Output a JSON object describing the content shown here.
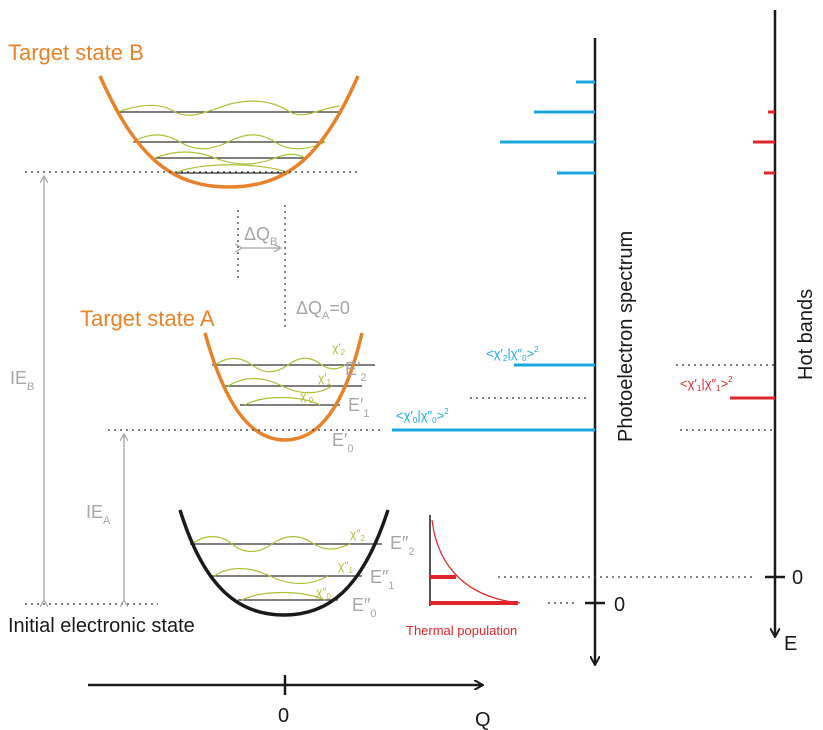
{
  "colors": {
    "target": "#e8822a",
    "initial": "#1a1a1a",
    "wavefunction": "#a8c33a",
    "spectrum": "#1aa7e0",
    "hot": "#e0262b",
    "annotation": "#a6a6a6"
  },
  "labels": {
    "target_b": "Target state B",
    "target_a": "Target state A",
    "initial": "Initial electronic state",
    "thermal": "Thermal population",
    "photoelectron": "Photoelectron spectrum",
    "hot_bands": "Hot bands",
    "ie_a": "IE",
    "ie_a_sub": "A",
    "ie_b": "IE",
    "ie_b_sub": "B",
    "dq_b": "ΔQ",
    "dq_b_sub": "B",
    "dq_a": "ΔQ",
    "dq_a_sub": "A",
    "dq_a_val": "=0"
  },
  "levels_a": [
    {
      "E": "E′",
      "sub": "0",
      "chi": "χ′",
      "chi_sub": "0"
    },
    {
      "E": "E′",
      "sub": "1",
      "chi": "χ′",
      "chi_sub": "1"
    },
    {
      "E": "E′",
      "sub": "2",
      "chi": "χ′",
      "chi_sub": "2"
    }
  ],
  "levels_init": [
    {
      "E": "E″",
      "sub": "0",
      "chi": "χ″",
      "chi_sub": "0"
    },
    {
      "E": "E″",
      "sub": "1",
      "chi": "χ″",
      "chi_sub": "1"
    },
    {
      "E": "E″",
      "sub": "2",
      "chi": "χ″",
      "chi_sub": "2"
    }
  ],
  "franck_condon": {
    "fc0": {
      "pre": "<χ′",
      "a": "0",
      "mid": "|χ″",
      "b": "0",
      "post": ">",
      "sq": "2"
    },
    "fc2": {
      "pre": "<χ′",
      "a": "2",
      "mid": "|χ″",
      "b": "0",
      "post": ">",
      "sq": "2"
    },
    "hot": {
      "pre": "<χ′",
      "a": "1",
      "mid": "|χ″",
      "b": "1",
      "post": ">",
      "sq": "2"
    }
  },
  "axes": {
    "q_label": "Q",
    "q_zero": "0",
    "pes_zero": "0",
    "hot_zero": "0",
    "e_label": "E"
  }
}
